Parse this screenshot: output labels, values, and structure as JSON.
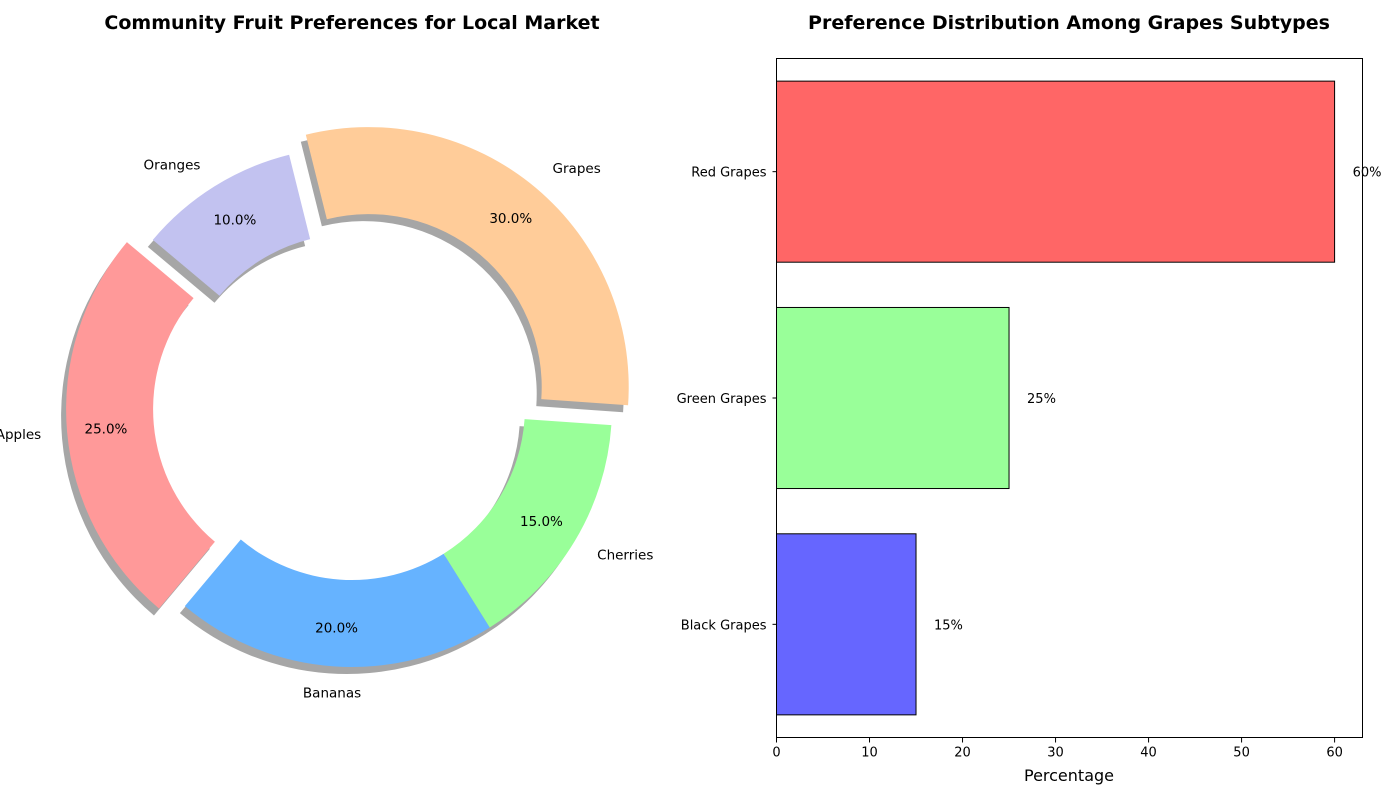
{
  "chart_data": [
    {
      "type": "pie",
      "title": "Community Fruit Preferences for Local Market",
      "donut": true,
      "shadow": true,
      "start_angle": 140,
      "slices": [
        {
          "label": "Apples",
          "value": 25.0,
          "pct_label": "25.0%",
          "color": "#ff9999",
          "exploded": true
        },
        {
          "label": "Bananas",
          "value": 20.0,
          "pct_label": "20.0%",
          "color": "#66b3ff",
          "exploded": false
        },
        {
          "label": "Cherries",
          "value": 15.0,
          "pct_label": "15.0%",
          "color": "#99ff99",
          "exploded": false
        },
        {
          "label": "Grapes",
          "value": 30.0,
          "pct_label": "30.0%",
          "color": "#ffcc99",
          "exploded": true
        },
        {
          "label": "Oranges",
          "value": 10.0,
          "pct_label": "10.0%",
          "color": "#c2c2f0",
          "exploded": false
        }
      ]
    },
    {
      "type": "bar",
      "orientation": "horizontal",
      "title": "Preference Distribution Among Grapes Subtypes",
      "categories": [
        "Red Grapes",
        "Green Grapes",
        "Black Grapes"
      ],
      "values": [
        60,
        25,
        15
      ],
      "value_labels": [
        "60%",
        "25%",
        "15%"
      ],
      "colors": [
        "#ff6666",
        "#99ff99",
        "#6666ff"
      ],
      "xlabel": "Percentage",
      "ylabel": "",
      "xlim": [
        0,
        63
      ],
      "xticks": [
        0,
        10,
        20,
        30,
        40,
        50,
        60
      ],
      "grid": false
    }
  ]
}
